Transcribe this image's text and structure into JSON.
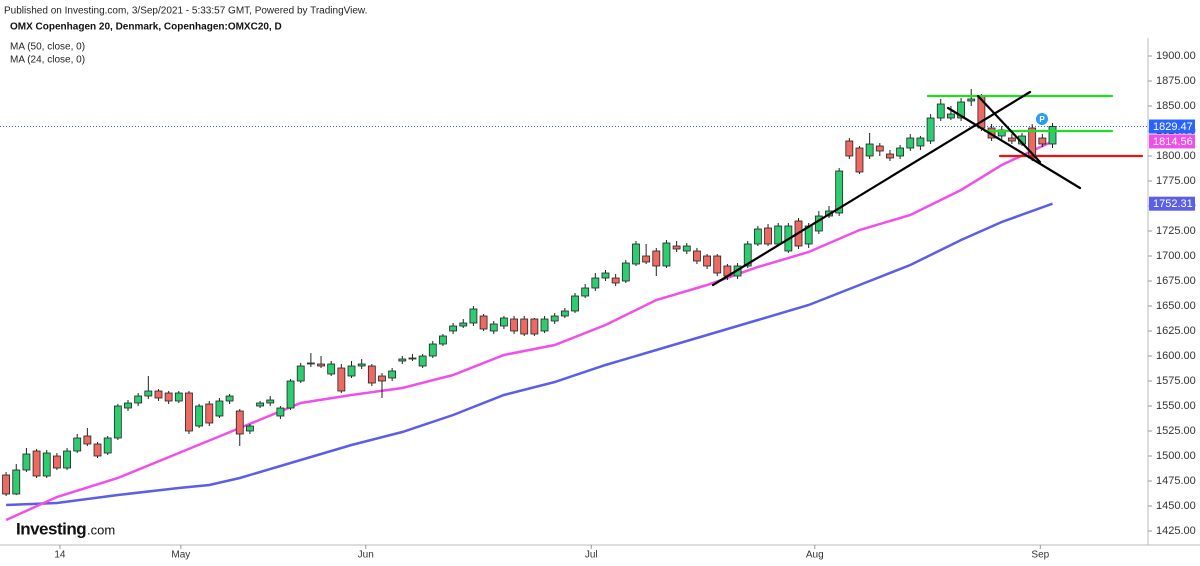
{
  "chart_data": {
    "type": "candlestick",
    "subtitle": "Published on Investing.com, 3/Sep/2021 - 5:33:57 GMT, Powered by TradingView.",
    "title": "OMX Copenhagen 20, Denmark, Copenhagen:OMXC20, D",
    "watermark": [
      "Investing",
      ".com"
    ],
    "up_color": "#2ecc71",
    "down_color": "#ec6a62",
    "open": [
      1481,
      1462,
      1486,
      1505,
      1480,
      1500,
      1488,
      1505,
      1520,
      1512,
      1503,
      1518,
      1548,
      1553,
      1560,
      1565,
      1563,
      1555,
      1563,
      1530,
      1552,
      1540,
      1555,
      1545,
      1525,
      1550,
      1553,
      1540,
      1548,
      1575,
      1592,
      1592,
      1582,
      1588,
      1580,
      1590,
      1590,
      1580,
      1578,
      1595,
      1597,
      1590,
      1600,
      1612,
      1625,
      1630,
      1633,
      1640,
      1625,
      1630,
      1637,
      1637,
      1637,
      1625,
      1635,
      1640,
      1645,
      1660,
      1668,
      1678,
      1678,
      1675,
      1692,
      1700,
      1705,
      1690,
      1710,
      1705,
      1705,
      1700,
      1700,
      1690,
      1680,
      1690,
      1712,
      1728,
      1712,
      1705,
      1735,
      1712,
      1725,
      1740,
      1743,
      1815,
      1808,
      1800,
      1810,
      1802,
      1800,
      1808,
      1810,
      1815,
      1838,
      1838,
      1838,
      1855,
      1860,
      1828,
      1820,
      1818,
      1812,
      1828,
      1818,
      1812
    ],
    "high": [
      1484,
      1492,
      1508,
      1507,
      1506,
      1503,
      1508,
      1522,
      1528,
      1514,
      1520,
      1552,
      1556,
      1563,
      1580,
      1567,
      1565,
      1565,
      1565,
      1552,
      1555,
      1558,
      1562,
      1547,
      1532,
      1555,
      1560,
      1550,
      1577,
      1593,
      1603,
      1600,
      1595,
      1592,
      1595,
      1597,
      1592,
      1583,
      1588,
      1600,
      1602,
      1602,
      1615,
      1622,
      1633,
      1637,
      1650,
      1642,
      1635,
      1640,
      1640,
      1640,
      1638,
      1640,
      1643,
      1648,
      1663,
      1672,
      1683,
      1686,
      1682,
      1696,
      1715,
      1712,
      1708,
      1716,
      1715,
      1713,
      1708,
      1702,
      1702,
      1692,
      1693,
      1715,
      1730,
      1732,
      1733,
      1733,
      1738,
      1733,
      1745,
      1750,
      1788,
      1818,
      1810,
      1823,
      1813,
      1806,
      1811,
      1822,
      1820,
      1842,
      1857,
      1850,
      1858,
      1867,
      1862,
      1832,
      1830,
      1822,
      1823,
      1832,
      1822,
      1833
    ],
    "low": [
      1460,
      1461,
      1484,
      1478,
      1478,
      1486,
      1486,
      1503,
      1510,
      1498,
      1501,
      1516,
      1545,
      1550,
      1557,
      1555,
      1552,
      1553,
      1522,
      1528,
      1530,
      1538,
      1552,
      1510,
      1522,
      1548,
      1550,
      1537,
      1546,
      1573,
      1589,
      1588,
      1580,
      1563,
      1578,
      1587,
      1570,
      1558,
      1575,
      1592,
      1595,
      1588,
      1598,
      1610,
      1622,
      1628,
      1630,
      1625,
      1622,
      1627,
      1622,
      1620,
      1620,
      1623,
      1632,
      1638,
      1643,
      1658,
      1665,
      1675,
      1670,
      1673,
      1690,
      1692,
      1680,
      1688,
      1704,
      1702,
      1692,
      1687,
      1680,
      1676,
      1677,
      1688,
      1710,
      1710,
      1710,
      1703,
      1707,
      1708,
      1722,
      1738,
      1740,
      1797,
      1782,
      1797,
      1800,
      1795,
      1797,
      1805,
      1806,
      1812,
      1835,
      1836,
      1835,
      1850,
      1825,
      1815,
      1817,
      1812,
      1810,
      1795,
      1809,
      1808
    ],
    "close": [
      1462,
      1486,
      1502,
      1480,
      1503,
      1488,
      1505,
      1518,
      1512,
      1500,
      1518,
      1550,
      1553,
      1560,
      1565,
      1558,
      1555,
      1563,
      1525,
      1550,
      1533,
      1555,
      1560,
      1522,
      1530,
      1553,
      1556,
      1548,
      1575,
      1590,
      1593,
      1590,
      1592,
      1565,
      1590,
      1592,
      1573,
      1575,
      1585,
      1597,
      1598,
      1600,
      1612,
      1620,
      1630,
      1633,
      1647,
      1627,
      1632,
      1638,
      1625,
      1622,
      1622,
      1637,
      1640,
      1645,
      1660,
      1668,
      1678,
      1683,
      1673,
      1693,
      1712,
      1694,
      1690,
      1713,
      1707,
      1710,
      1695,
      1690,
      1683,
      1680,
      1690,
      1712,
      1727,
      1712,
      1730,
      1730,
      1710,
      1730,
      1740,
      1745,
      1785,
      1800,
      1784,
      1812,
      1805,
      1798,
      1808,
      1818,
      1818,
      1838,
      1852,
      1842,
      1854,
      1857,
      1828,
      1818,
      1826,
      1815,
      1820,
      1798,
      1812,
      1829.47
    ],
    "lines": [
      {
        "name": "MA (50, close, 0)",
        "color": "#5b5ee6",
        "x": [
          0,
          5,
          11,
          17,
          20,
          23,
          29,
          34,
          39,
          44,
          49,
          54,
          59,
          64,
          69,
          74,
          79,
          84,
          89,
          94,
          98,
          103
        ],
        "values": [
          1451,
          1453,
          1461,
          1468,
          1471,
          1478,
          1496,
          1511,
          1524,
          1541,
          1561,
          1574,
          1591,
          1606,
          1621,
          1636,
          1651,
          1671,
          1691,
          1716,
          1734,
          1752.31
        ]
      },
      {
        "name": "MA (24, close, 0)",
        "color": "#f050ea",
        "x": [
          0,
          5,
          11,
          17,
          23,
          29,
          34,
          39,
          44,
          49,
          54,
          59,
          64,
          69,
          74,
          79,
          84,
          89,
          94,
          98,
          103
        ],
        "values": [
          1436,
          1459,
          1478,
          1503,
          1528,
          1553,
          1561,
          1568,
          1581,
          1601,
          1611,
          1631,
          1656,
          1671,
          1689,
          1704,
          1726,
          1741,
          1766,
          1791,
          1814.56
        ]
      }
    ],
    "xlim": [
      -0.6,
      112.4
    ],
    "xticks": [
      {
        "value": 5.3,
        "label": "14"
      },
      {
        "value": 17.2,
        "label": "May"
      },
      {
        "value": 35.4,
        "label": "Jun"
      },
      {
        "value": 57.6,
        "label": "Jul"
      },
      {
        "value": 79.6,
        "label": "Aug"
      },
      {
        "value": 101.8,
        "label": "Sep"
      }
    ],
    "ylim": [
      1411,
      1916
    ],
    "yticks": [
      {
        "value": 1425,
        "label": "1425.00"
      },
      {
        "value": 1450,
        "label": "1450.00"
      },
      {
        "value": 1475,
        "label": "1475.00"
      },
      {
        "value": 1500,
        "label": "1500.00"
      },
      {
        "value": 1525,
        "label": "1525.00"
      },
      {
        "value": 1550,
        "label": "1550.00"
      },
      {
        "value": 1575,
        "label": "1575.00"
      },
      {
        "value": 1600,
        "label": "1600.00"
      },
      {
        "value": 1625,
        "label": "1625.00"
      },
      {
        "value": 1650,
        "label": "1650.00"
      },
      {
        "value": 1675,
        "label": "1675.00"
      },
      {
        "value": 1700,
        "label": "1700.00"
      },
      {
        "value": 1725,
        "label": "1725.00"
      },
      {
        "value": 1750,
        "label": "1750.00"
      },
      {
        "value": 1775,
        "label": "1775.00"
      },
      {
        "value": 1800,
        "label": "1800.00"
      },
      {
        "value": 1825,
        "label": "1825.00"
      },
      {
        "value": 1850,
        "label": "1850.00"
      },
      {
        "value": 1875,
        "label": "1875.00"
      },
      {
        "value": 1900,
        "label": "1900.00"
      }
    ],
    "grid": false,
    "last_price_color": "#2962ff"
  }
}
